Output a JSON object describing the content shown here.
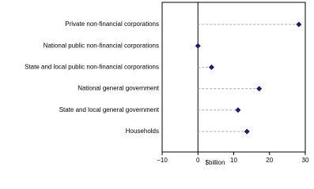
{
  "chart_data": {
    "type": "dot",
    "categories": [
      "Private non-financial corporations",
      "National public non-financial corporations",
      "State and local public non-financial corporations",
      "National general government",
      "State and local general government",
      "Households"
    ],
    "values": [
      28.2,
      0,
      3.8,
      17.1,
      11.2,
      13.7
    ],
    "color": "#1c1c6b",
    "xlim": [
      -10,
      30
    ],
    "xticks": [
      {
        "value": -10,
        "label": "−10"
      },
      0,
      10,
      20,
      30
    ],
    "x_label": "$billion"
  }
}
